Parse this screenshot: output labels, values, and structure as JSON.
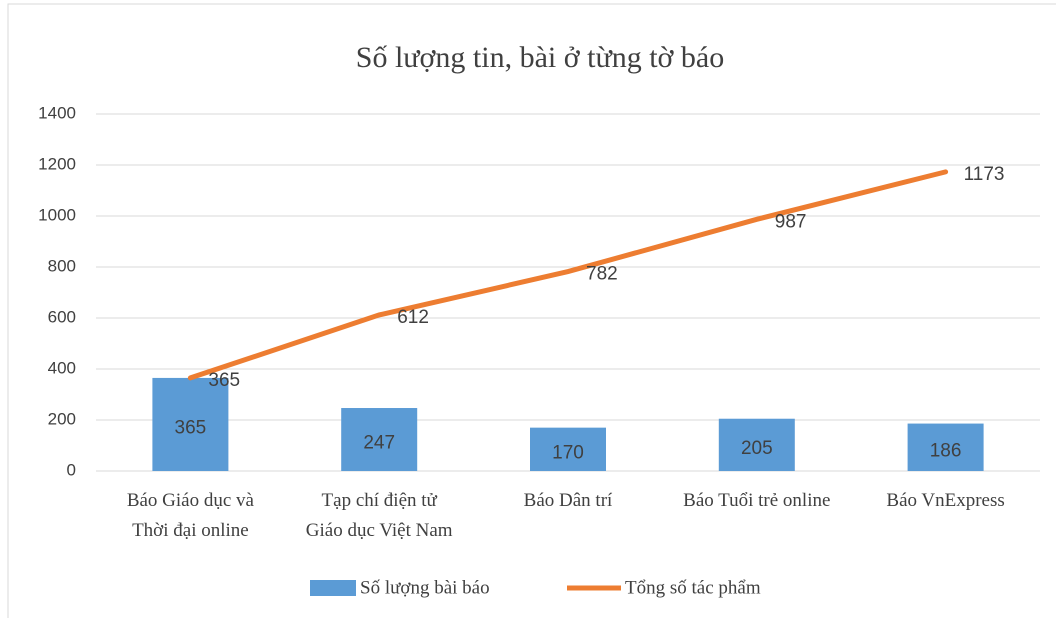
{
  "chart_data": {
    "type": "bar",
    "title": "Số lượng tin, bài ở từng tờ báo",
    "categories": [
      "Báo Giáo dục và\nThời đại online",
      "Tạp chí điện tử\nGiáo dục Việt Nam",
      "Báo Dân trí",
      "Báo Tuổi trẻ online",
      "Báo VnExpress"
    ],
    "series": [
      {
        "name": "Số lượng bài báo",
        "type": "bar",
        "color": "#5b9bd5",
        "values": [
          365,
          247,
          170,
          205,
          186
        ]
      },
      {
        "name": "Tổng số tác phẩm",
        "type": "line",
        "color": "#ed7d31",
        "values": [
          365,
          612,
          782,
          987,
          1173
        ]
      }
    ],
    "ylim": [
      0,
      1400
    ],
    "yticks": [
      0,
      200,
      400,
      600,
      800,
      1000,
      1200,
      1400
    ],
    "grid": true,
    "legend": "bottom"
  }
}
